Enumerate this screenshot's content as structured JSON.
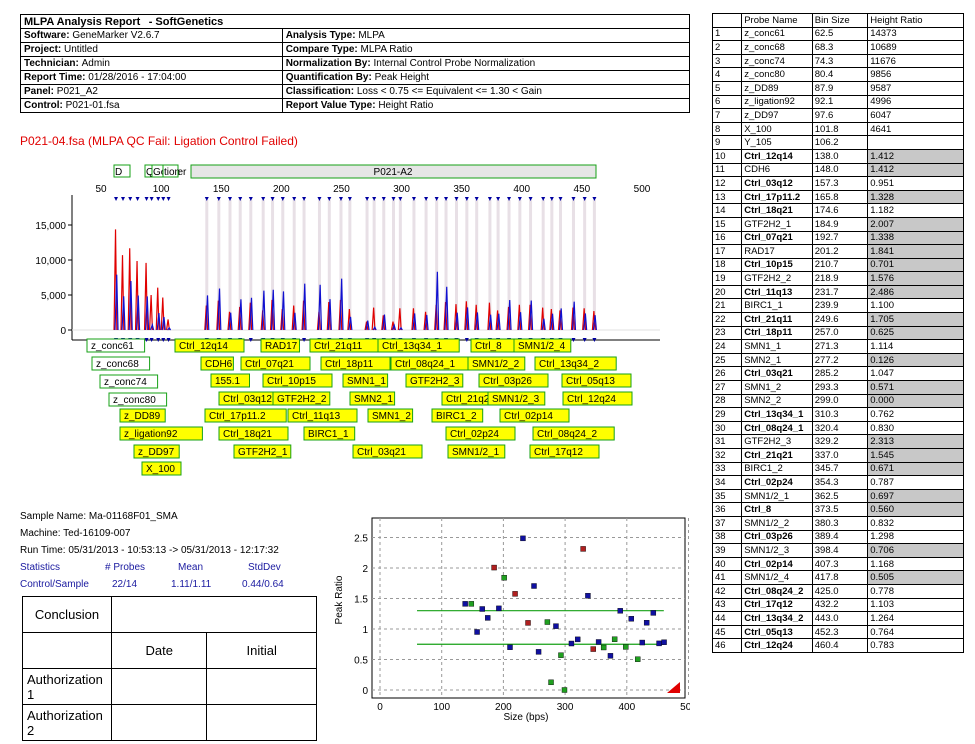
{
  "report": {
    "title": "MLPA Analysis Report",
    "brand": "- SoftGenetics",
    "software_k": "Software:",
    "software_v": "GeneMarker V2.6.7",
    "project_k": "Project:",
    "project_v": "Untitled",
    "technician_k": "Technician:",
    "technician_v": "Admin",
    "time_k": "Report Time:",
    "time_v": "01/28/2016 - 17:04:00",
    "panel_k": "Panel:",
    "panel_v": "P021_A2",
    "control_k": "Control:",
    "control_v": "P021-01.fsa",
    "atype_k": "Analysis Type:",
    "atype_v": "MLPA",
    "ctype_k": "Compare Type:",
    "ctype_v": "MLPA Ratio",
    "norm_k": "Normalization By:",
    "norm_v": "Internal Control Probe Normalization",
    "quant_k": "Quantification By:",
    "quant_v": "Peak Height",
    "class_k": "Classification:",
    "class_v": "Loss < 0.75 <= Equivalent <= 1.30 < Gain",
    "rvt_k": "Report Value Type:",
    "rvt_v": "Height Ratio"
  },
  "qc_message": "P021-04.fsa (MLPA QC Fail: Ligation Control Failed)",
  "epg": {
    "top_boxes": [
      "D",
      "Q and",
      "Gender",
      "tion"
    ],
    "panel_box": "P021-A2",
    "x_ticks": [
      "50",
      "100",
      "150",
      "200",
      "250",
      "300",
      "350",
      "400",
      "450",
      "500"
    ],
    "y_ticks": [
      "15,000",
      "10,000",
      "5,000",
      "0"
    ],
    "controls": [
      "z_conc61",
      "z_conc68",
      "z_conc74",
      "z_conc80",
      "z_DD89",
      "z_ligation92",
      "z_DD97",
      "X_100"
    ],
    "probe_labels": [
      "Ctrl_12q14",
      "RAD17",
      "Ctrl_21q11",
      "Ctrl_13q34_1",
      "Ctrl_8",
      "SMN1/2_4",
      "CDH6",
      "Ctrl_07q21",
      "Ctrl_18p11",
      "Ctrl_08q24_1",
      "SMN1/2_2",
      "Ctrl_13q34_2",
      "155.1",
      "Ctrl_10p15",
      "SMN1_1",
      "GTF2H2_3",
      "Ctrl_03p26",
      "Ctrl_05q13",
      "Ctrl_03q12",
      "GTF2H2_2",
      "SMN2_1",
      "Ctrl_21q21",
      "SMN1/2_3",
      "Ctrl_12q24",
      "Ctrl_17p11.2",
      "Ctrl_11q13",
      "SMN1_2",
      "BIRC1_2",
      "Ctrl_02p14",
      "Ctrl_18q21",
      "BIRC1_1",
      "Ctrl_02p24",
      "Ctrl_08q24_2",
      "GTF2H2_1",
      "Ctrl_03q21",
      "SMN1/2_1",
      "Ctrl_17q12"
    ]
  },
  "stats": {
    "sample": "Sample Name: Ma-01168F01_SMA",
    "machine": "Machine: Ted-16109-007",
    "runtime": "Run Time: 05/31/2013 - 10:53:13 -> 05/31/2013 - 12:17:32",
    "h_stat": "Statistics",
    "h_probes": "# Probes",
    "h_mean": "Mean",
    "h_std": "StdDev",
    "r_label": "Control/Sample",
    "r_probes": "22/14",
    "r_mean": "1.11/1.11",
    "r_std": "0.44/0.64"
  },
  "conclusion": {
    "conclusion": "Conclusion",
    "date": "Date",
    "initial": "Initial",
    "auth1": "Authorization 1",
    "auth2": "Authorization 2"
  },
  "scatter": {
    "ylabel": "Peak Ratio",
    "xlabel": "Size (bps)",
    "x_ticks": [
      "0",
      "100",
      "200",
      "300",
      "400",
      "500"
    ],
    "y_ticks": [
      "2.5",
      "2",
      "1.5",
      "1",
      "0.5",
      "0"
    ]
  },
  "probe_table": {
    "headers": [
      "",
      "Probe Name",
      "Bin Size",
      "Height Ratio"
    ],
    "rows": [
      [
        "1",
        "z_conc61",
        "62.5",
        "14373",
        0,
        0
      ],
      [
        "2",
        "z_conc68",
        "68.3",
        "10689",
        0,
        0
      ],
      [
        "3",
        "z_conc74",
        "74.3",
        "11676",
        0,
        0
      ],
      [
        "4",
        "z_conc80",
        "80.4",
        "9856",
        0,
        0
      ],
      [
        "5",
        "z_DD89",
        "87.9",
        "9587",
        0,
        0
      ],
      [
        "6",
        "z_ligation92",
        "92.1",
        "4996",
        0,
        0
      ],
      [
        "7",
        "z_DD97",
        "97.6",
        "6047",
        0,
        0
      ],
      [
        "8",
        "X_100",
        "101.8",
        "4641",
        0,
        0
      ],
      [
        "9",
        "Y_105",
        "106.2",
        "",
        0,
        0
      ],
      [
        "10",
        "Ctrl_12q14",
        "138.0",
        "1.412",
        1,
        1
      ],
      [
        "11",
        "CDH6",
        "148.0",
        "1.412",
        0,
        1
      ],
      [
        "12",
        "Ctrl_03q12",
        "157.3",
        "0.951",
        1,
        0
      ],
      [
        "13",
        "Ctrl_17p11.2",
        "165.8",
        "1.328",
        1,
        1
      ],
      [
        "14",
        "Ctrl_18q21",
        "174.6",
        "1.182",
        1,
        0
      ],
      [
        "15",
        "GTF2H2_1",
        "184.9",
        "2.007",
        0,
        1
      ],
      [
        "16",
        "Ctrl_07q21",
        "192.7",
        "1.338",
        1,
        1
      ],
      [
        "17",
        "RAD17",
        "201.2",
        "1.841",
        0,
        1
      ],
      [
        "18",
        "Ctrl_10p15",
        "210.7",
        "0.701",
        1,
        1
      ],
      [
        "19",
        "GTF2H2_2",
        "218.9",
        "1.576",
        0,
        1
      ],
      [
        "20",
        "Ctrl_11q13",
        "231.7",
        "2.486",
        1,
        1
      ],
      [
        "21",
        "BIRC1_1",
        "239.9",
        "1.100",
        0,
        0
      ],
      [
        "22",
        "Ctrl_21q11",
        "249.6",
        "1.705",
        1,
        1
      ],
      [
        "23",
        "Ctrl_18p11",
        "257.0",
        "0.625",
        1,
        1
      ],
      [
        "24",
        "SMN1_1",
        "271.3",
        "1.114",
        0,
        0
      ],
      [
        "25",
        "SMN2_1",
        "277.2",
        "0.126",
        0,
        1
      ],
      [
        "26",
        "Ctrl_03q21",
        "285.2",
        "1.047",
        1,
        0
      ],
      [
        "27",
        "SMN1_2",
        "293.3",
        "0.571",
        0,
        1
      ],
      [
        "28",
        "SMN2_2",
        "299.0",
        "0.000",
        0,
        1
      ],
      [
        "29",
        "Ctrl_13q34_1",
        "310.3",
        "0.762",
        1,
        0
      ],
      [
        "30",
        "Ctrl_08q24_1",
        "320.4",
        "0.830",
        1,
        0
      ],
      [
        "31",
        "GTF2H2_3",
        "329.2",
        "2.313",
        0,
        1
      ],
      [
        "32",
        "Ctrl_21q21",
        "337.0",
        "1.545",
        1,
        1
      ],
      [
        "33",
        "BIRC1_2",
        "345.7",
        "0.671",
        0,
        1
      ],
      [
        "34",
        "Ctrl_02p24",
        "354.3",
        "0.787",
        1,
        0
      ],
      [
        "35",
        "SMN1/2_1",
        "362.5",
        "0.697",
        0,
        1
      ],
      [
        "36",
        "Ctrl_8",
        "373.5",
        "0.560",
        1,
        1
      ],
      [
        "37",
        "SMN1/2_2",
        "380.3",
        "0.832",
        0,
        0
      ],
      [
        "38",
        "Ctrl_03p26",
        "389.4",
        "1.298",
        1,
        0
      ],
      [
        "39",
        "SMN1/2_3",
        "398.4",
        "0.706",
        0,
        1
      ],
      [
        "40",
        "Ctrl_02p14",
        "407.3",
        "1.168",
        1,
        0
      ],
      [
        "41",
        "SMN1/2_4",
        "417.8",
        "0.505",
        0,
        1
      ],
      [
        "42",
        "Ctrl_08q24_2",
        "425.0",
        "0.778",
        1,
        0
      ],
      [
        "43",
        "Ctrl_17q12",
        "432.2",
        "1.103",
        1,
        0
      ],
      [
        "44",
        "Ctrl_13q34_2",
        "443.0",
        "1.264",
        1,
        0
      ],
      [
        "45",
        "Ctrl_05q13",
        "452.3",
        "0.764",
        1,
        0
      ],
      [
        "46",
        "Ctrl_12q24",
        "460.4",
        "0.783",
        1,
        0
      ]
    ]
  },
  "colors": {
    "red": "#e00000",
    "blue": "#1010d0",
    "yellow": "#ffff00",
    "green": "#16a016",
    "gray": "#c8c8c8"
  }
}
